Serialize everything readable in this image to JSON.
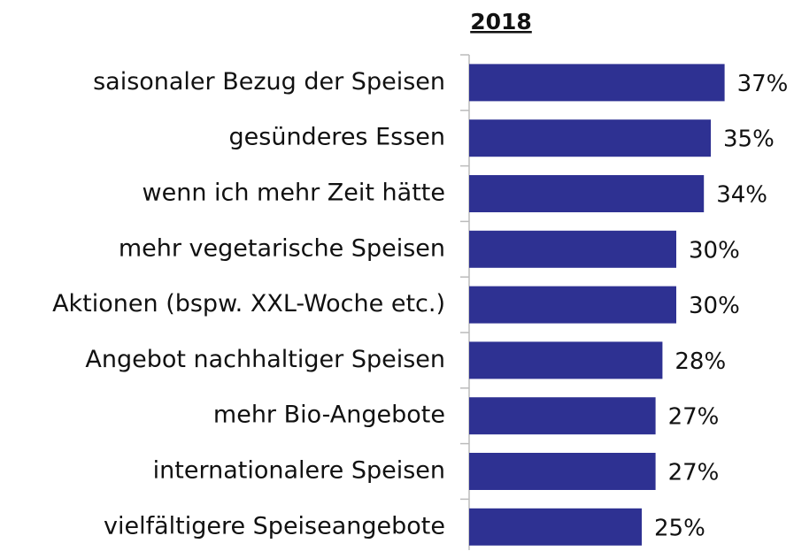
{
  "chart_data": {
    "type": "bar",
    "orientation": "horizontal",
    "title": "2018",
    "categories": [
      "saisonaler Bezug der Speisen",
      "gesünderes Essen",
      "wenn ich mehr Zeit hätte",
      "mehr vegetarische Speisen",
      "Aktionen (bspw. XXL-Woche etc.)",
      "Angebot nachhaltiger Speisen",
      "mehr Bio-Angebote",
      "internationalere Speisen",
      "vielfältigere Speiseangebote"
    ],
    "values": [
      37,
      35,
      34,
      30,
      30,
      28,
      27,
      27,
      25
    ],
    "value_labels": [
      "37%",
      "35%",
      "34%",
      "30%",
      "30%",
      "28%",
      "27%",
      "27%",
      "25%"
    ],
    "color": "#2e3192"
  }
}
